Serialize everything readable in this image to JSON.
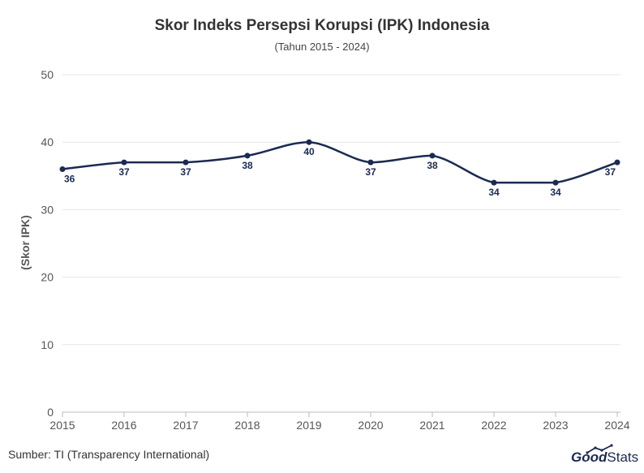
{
  "chart_data": {
    "type": "line",
    "title": "Skor Indeks Persepsi Korupsi (IPK) Indonesia",
    "subtitle": "(Tahun 2015 - 2024)",
    "xlabel": "",
    "ylabel": "(Skor IPK)",
    "x": [
      "2015",
      "2016",
      "2017",
      "2018",
      "2019",
      "2020",
      "2021",
      "2022",
      "2023",
      "2024"
    ],
    "series": [
      {
        "values": [
          36,
          37,
          37,
          38,
          40,
          37,
          38,
          34,
          34,
          37
        ]
      }
    ],
    "data_labels": [
      "36",
      "37",
      "37",
      "38",
      "40",
      "37",
      "38",
      "34",
      "34",
      "37"
    ],
    "ylim": [
      0,
      50
    ],
    "yticks": [
      0,
      10,
      20,
      30,
      40,
      50
    ],
    "grid": true,
    "legend": "none",
    "line_color": "#1b2a52",
    "grid_color": "#e6e6e6"
  },
  "footer": {
    "source": "Sumber: TI (Transparency International)",
    "logo_good": "Good",
    "logo_stats": "Stats",
    "logo_good_color": "#1b2a52",
    "logo_stats_color": "#1b2a52"
  }
}
